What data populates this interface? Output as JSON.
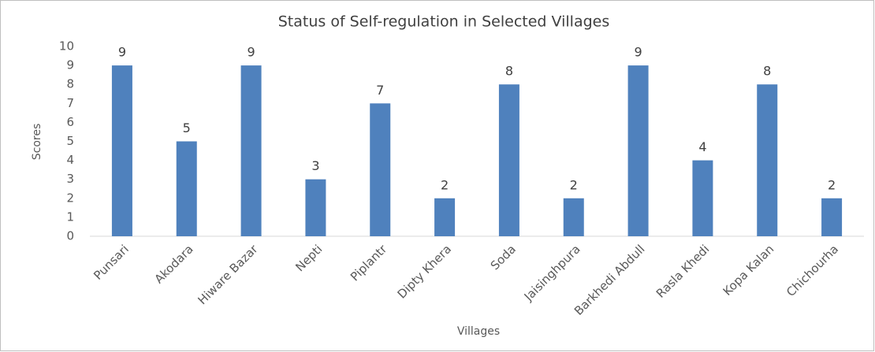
{
  "chart_data": {
    "type": "bar",
    "title": "Status of Self-regulation in Selected Villages",
    "x_label": "Villages",
    "y_label": "Scores",
    "categories": [
      "Punsari",
      "Akodara",
      "Hiware Bazar",
      "Nepti",
      "Piplantr",
      "Dipty Khera",
      "Soda",
      "Jaisinghpura",
      "Barkhedi Abdull",
      "Rasla Khedi",
      "Kopa Kalan",
      "Chichourha"
    ],
    "values": [
      9,
      5,
      9,
      3,
      7,
      2,
      8,
      2,
      9,
      4,
      8,
      2
    ],
    "color": "#4f81bd",
    "ylim": [
      0,
      10
    ],
    "yticks": [
      0,
      1,
      2,
      3,
      4,
      5,
      6,
      7,
      8,
      9,
      10
    ],
    "grid": false
  }
}
